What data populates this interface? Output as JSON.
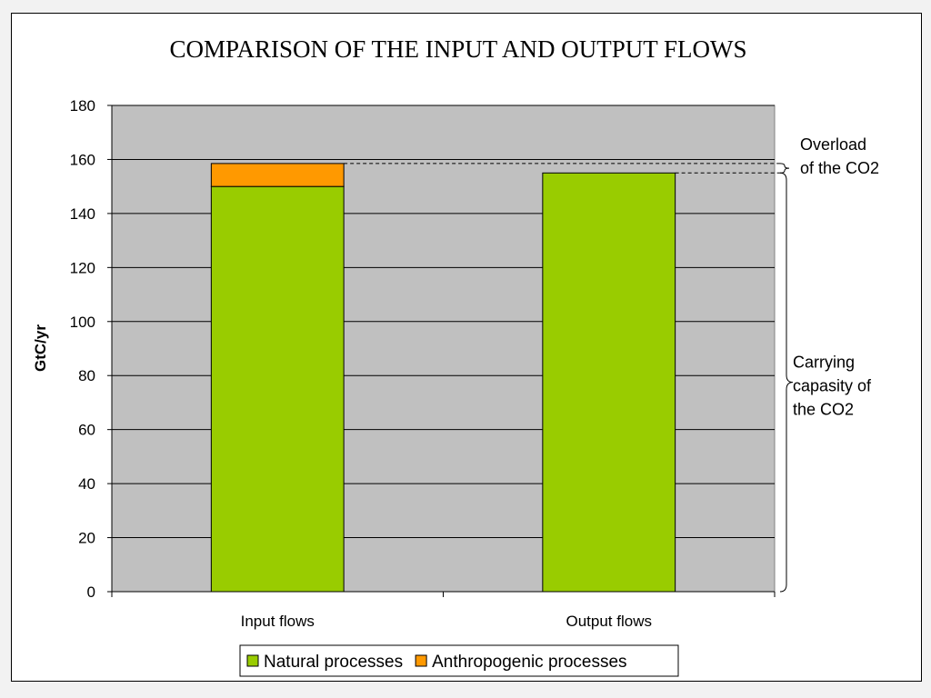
{
  "chart_data": {
    "type": "bar",
    "stacked": true,
    "title": "COMPARISON OF THE INPUT AND OUTPUT FLOWS",
    "xlabel": "",
    "ylabel": "GtC/yr",
    "ylim": [
      0,
      180
    ],
    "yticks": [
      0,
      20,
      40,
      60,
      80,
      100,
      120,
      140,
      160,
      180
    ],
    "categories": [
      "Input flows",
      "Output flows"
    ],
    "series": [
      {
        "name": "Natural processes",
        "values": [
          150,
          155
        ],
        "color": "#99cc00"
      },
      {
        "name": "Anthropogenic processes",
        "values": [
          8.5,
          0
        ],
        "color": "#ff9900"
      }
    ],
    "grid": true,
    "plot_background": "#c0c0c0",
    "legend_position": "bottom",
    "annotations": [
      {
        "text": "Overload of the CO2",
        "lines": [
          "Overload",
          "of the CO2"
        ],
        "range": [
          155,
          158.5
        ]
      },
      {
        "text": "Carrying capasity of the CO2",
        "lines": [
          "Carrying",
          "capasity of",
          "the CO2"
        ],
        "range": [
          0,
          155
        ]
      }
    ]
  }
}
